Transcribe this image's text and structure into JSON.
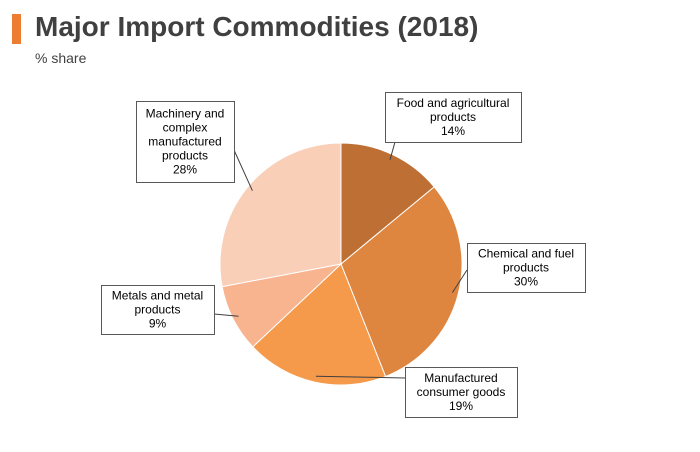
{
  "header": {
    "title": "Major Import Commodities (2018)",
    "subtitle": "% share"
  },
  "colors": {
    "accent": "#ED7D31"
  },
  "chart_data": {
    "type": "pie",
    "title": "Major Import Commodities (2018)",
    "subtitle": "% share",
    "start_angle_deg": 0,
    "direction": "clockwise",
    "slices": [
      {
        "name": "Food and agricultural products",
        "label_lines": [
          "Food and agricultural",
          "products"
        ],
        "value": 14,
        "value_label": "14%",
        "color": "#BE7034"
      },
      {
        "name": "Chemical and fuel products",
        "label_lines": [
          "Chemical and fuel",
          "products"
        ],
        "value": 30,
        "value_label": "30%",
        "color": "#DE8640"
      },
      {
        "name": "Manufactured consumer goods",
        "label_lines": [
          "Manufactured",
          "consumer goods"
        ],
        "value": 19,
        "value_label": "19%",
        "color": "#F5994A"
      },
      {
        "name": "Metals and metal products",
        "label_lines": [
          "Metals and metal",
          "products"
        ],
        "value": 9,
        "value_label": "9%",
        "color": "#F8B38F"
      },
      {
        "name": "Machinery and complex manufactured products",
        "label_lines": [
          "Machinery and",
          "complex",
          "manufactured",
          "products"
        ],
        "value": 28,
        "value_label": "28%",
        "color": "#FACFB8"
      }
    ]
  }
}
